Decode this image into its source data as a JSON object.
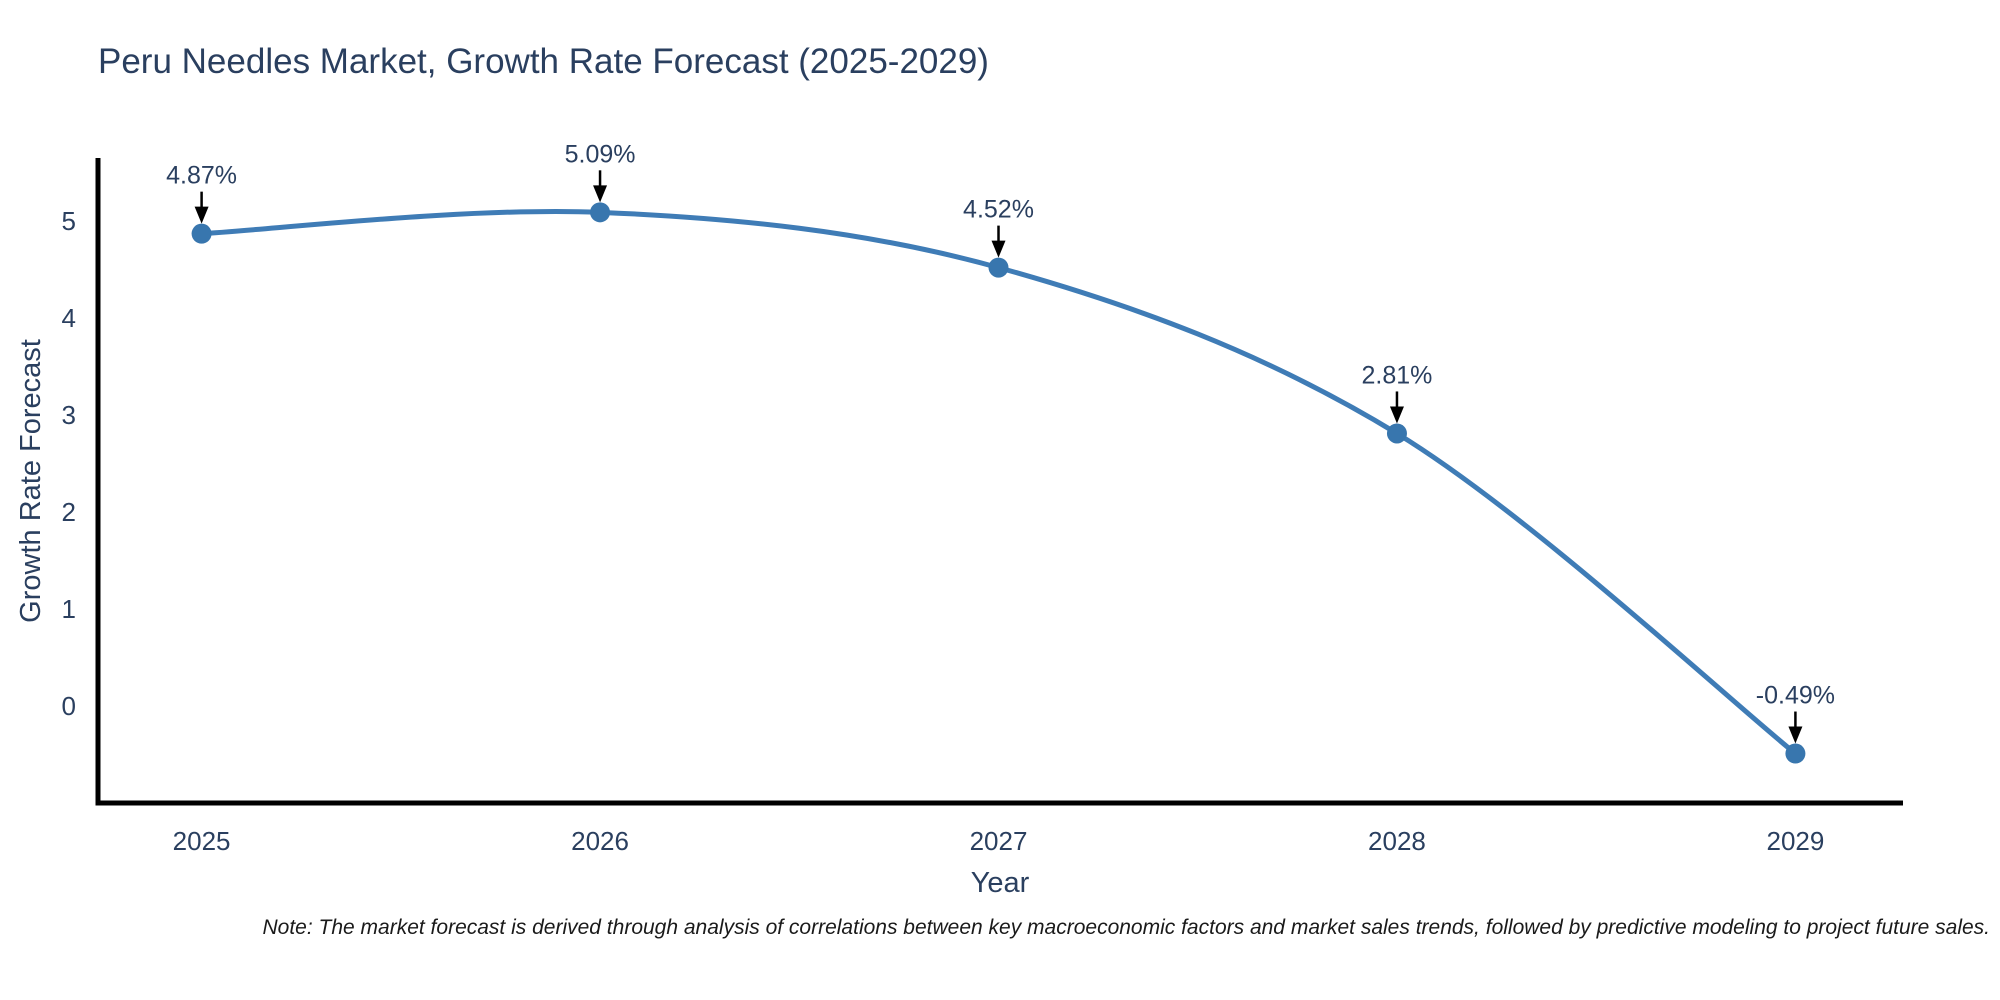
{
  "chart_data": {
    "type": "line",
    "title": "Peru Needles Market, Growth Rate Forecast (2025-2029)",
    "xlabel": "Year",
    "ylabel": "Growth Rate Forecast",
    "x": [
      2025,
      2026,
      2027,
      2028,
      2029
    ],
    "series": [
      {
        "name": "Growth Rate Forecast",
        "values": [
          4.87,
          5.09,
          4.52,
          2.81,
          -0.49
        ]
      }
    ],
    "point_labels": [
      "4.87%",
      "5.09%",
      "4.52%",
      "2.81%",
      "-0.49%"
    ],
    "x_ticks": [
      "2025",
      "2026",
      "2027",
      "2028",
      "2029"
    ],
    "y_ticks": [
      0,
      1,
      2,
      3,
      4,
      5
    ],
    "xlim": [
      2024.74,
      2029.27
    ],
    "ylim": [
      -1.0,
      5.65
    ],
    "grid": false,
    "legend": false,
    "curve": "spline",
    "annotations_have_arrows": true,
    "colors": {
      "line": "#3f7cb6",
      "marker": "#3876ae",
      "axis": "#000000",
      "text": "#2a3f5f",
      "annotation_arrow": "#000000",
      "note_text": "#1a1a1a",
      "background": "#ffffff"
    }
  },
  "note": {
    "text": "Note: The market forecast is derived through analysis of correlations between key macroeconomic factors and market sales trends, followed by predictive modeling to project future sales."
  }
}
